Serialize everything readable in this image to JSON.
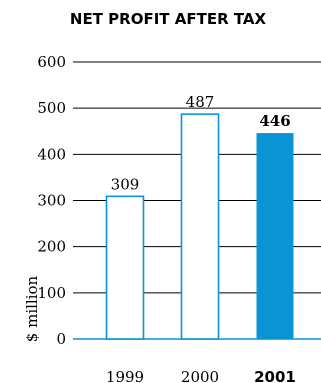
{
  "chart_data": {
    "type": "bar",
    "title": "NET PROFIT AFTER TAX",
    "xlabel": "",
    "ylabel": "$ million",
    "categories": [
      "1999",
      "2000",
      "2001"
    ],
    "values": [
      309,
      487,
      446
    ],
    "value_labels": [
      "309",
      "487",
      "446"
    ],
    "ylim": [
      0,
      600
    ],
    "yticks": [
      "0",
      "100",
      "200",
      "300",
      "400",
      "500",
      "600"
    ],
    "grid": true,
    "legend": "none",
    "highlight_index": 2,
    "colors": {
      "accent": "#0a94d6",
      "outline": "#0a94d6",
      "bar_fill": "#ffffff",
      "grid": "#000000",
      "text": "#000000"
    }
  }
}
